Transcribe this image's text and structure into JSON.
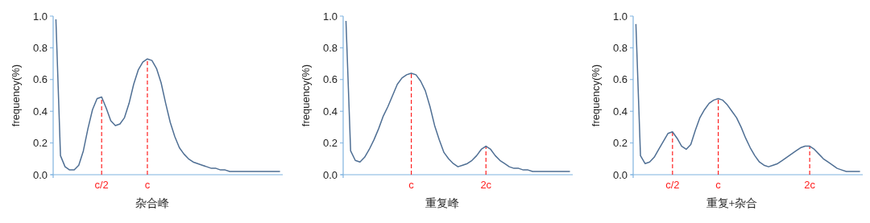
{
  "chart_data": [
    {
      "type": "line",
      "xlabel": "杂合峰",
      "ylabel": "frequency(%)",
      "ylim": [
        0,
        1
      ],
      "yticks": [
        {
          "value": 0,
          "label": "0.0"
        },
        {
          "value": 0.2,
          "label": "0.2"
        },
        {
          "value": 0.4,
          "label": "0.4"
        },
        {
          "value": 0.6,
          "label": "0.6"
        },
        {
          "value": 0.8,
          "label": "0.8"
        },
        {
          "value": 1,
          "label": "1.0"
        }
      ],
      "line_style": "solid",
      "categories": [
        null,
        null,
        null,
        null,
        null,
        null,
        null,
        null,
        null,
        null,
        "c/2",
        null,
        null,
        null,
        null,
        null,
        null,
        null,
        null,
        null,
        "c",
        null,
        null,
        null,
        null,
        null,
        null,
        null,
        null,
        null,
        null,
        null,
        null,
        null,
        null,
        null,
        null,
        null,
        null,
        null,
        null,
        null,
        null,
        null,
        null,
        null,
        null,
        null,
        null,
        null
      ],
      "series": [
        {
          "color": "#4f6f94",
          "values": [
            0.98,
            0.12,
            0.05,
            0.03,
            0.03,
            0.06,
            0.15,
            0.29,
            0.41,
            0.48,
            0.49,
            0.42,
            0.34,
            0.31,
            0.32,
            0.36,
            0.45,
            0.57,
            0.66,
            0.71,
            0.73,
            0.72,
            0.67,
            0.58,
            0.45,
            0.33,
            0.24,
            0.17,
            0.13,
            0.1,
            0.08,
            0.07,
            0.06,
            0.05,
            0.04,
            0.04,
            0.03,
            0.03,
            0.02,
            0.02,
            0.02,
            0.02,
            0.02,
            0.02,
            0.02,
            0.02,
            0.02,
            0.02,
            0.02,
            0.02
          ]
        }
      ],
      "ref_lines": [
        {
          "axis": "x",
          "value": "c/2",
          "color": "#ff2020",
          "line_style": "dashed"
        },
        {
          "axis": "x",
          "value": "c",
          "color": "#ff2020",
          "line_style": "dashed"
        }
      ]
    },
    {
      "type": "line",
      "xlabel": "重复峰",
      "ylabel": "frequency(%)",
      "ylim": [
        0,
        1
      ],
      "yticks": [
        {
          "value": 0,
          "label": "0.0"
        },
        {
          "value": 0.2,
          "label": "0.2"
        },
        {
          "value": 0.4,
          "label": "0.4"
        },
        {
          "value": 0.6,
          "label": "0.6"
        },
        {
          "value": 0.8,
          "label": "0.8"
        },
        {
          "value": 1,
          "label": "1.0"
        }
      ],
      "line_style": "solid",
      "categories": [
        null,
        null,
        null,
        null,
        null,
        null,
        null,
        null,
        null,
        null,
        null,
        null,
        null,
        null,
        "c",
        null,
        null,
        null,
        null,
        null,
        null,
        null,
        null,
        null,
        null,
        null,
        null,
        null,
        null,
        null,
        "2c",
        null,
        null,
        null,
        null,
        null,
        null,
        null,
        null,
        null,
        null,
        null,
        null,
        null,
        null,
        null,
        null,
        null,
        null
      ],
      "series": [
        {
          "color": "#4f6f94",
          "values": [
            0.97,
            0.15,
            0.09,
            0.08,
            0.11,
            0.16,
            0.22,
            0.29,
            0.37,
            0.43,
            0.5,
            0.57,
            0.61,
            0.63,
            0.64,
            0.63,
            0.59,
            0.53,
            0.43,
            0.31,
            0.22,
            0.14,
            0.1,
            0.07,
            0.05,
            0.06,
            0.07,
            0.09,
            0.12,
            0.16,
            0.18,
            0.16,
            0.12,
            0.09,
            0.07,
            0.05,
            0.04,
            0.04,
            0.03,
            0.03,
            0.02,
            0.02,
            0.02,
            0.02,
            0.02,
            0.02,
            0.02,
            0.02,
            0.02
          ]
        }
      ],
      "ref_lines": [
        {
          "axis": "x",
          "value": "c",
          "color": "#ff2020",
          "line_style": "dashed"
        },
        {
          "axis": "x",
          "value": "2c",
          "color": "#ff2020",
          "line_style": "dashed"
        }
      ]
    },
    {
      "type": "line",
      "xlabel": "重复+杂合",
      "ylabel": "frequency(%)",
      "ylim": [
        0,
        1
      ],
      "yticks": [
        {
          "value": 0,
          "label": "0.0"
        },
        {
          "value": 0.2,
          "label": "0.2"
        },
        {
          "value": 0.4,
          "label": "0.4"
        },
        {
          "value": 0.6,
          "label": "0.6"
        },
        {
          "value": 0.8,
          "label": "0.8"
        },
        {
          "value": 1,
          "label": "1.0"
        }
      ],
      "line_style": "solid",
      "categories": [
        null,
        null,
        null,
        null,
        null,
        null,
        null,
        null,
        "c/2",
        null,
        null,
        null,
        null,
        null,
        null,
        null,
        null,
        null,
        "c",
        null,
        null,
        null,
        null,
        null,
        null,
        null,
        null,
        null,
        null,
        null,
        null,
        null,
        null,
        null,
        null,
        null,
        null,
        null,
        "2c",
        null,
        null,
        null,
        null,
        null,
        null,
        null,
        null,
        null,
        null,
        null
      ],
      "series": [
        {
          "color": "#4f6f94",
          "values": [
            0.95,
            0.12,
            0.07,
            0.08,
            0.11,
            0.16,
            0.21,
            0.26,
            0.27,
            0.23,
            0.18,
            0.16,
            0.19,
            0.28,
            0.36,
            0.41,
            0.45,
            0.47,
            0.48,
            0.47,
            0.44,
            0.4,
            0.36,
            0.3,
            0.23,
            0.17,
            0.12,
            0.08,
            0.06,
            0.05,
            0.06,
            0.07,
            0.09,
            0.11,
            0.13,
            0.15,
            0.17,
            0.18,
            0.18,
            0.16,
            0.13,
            0.1,
            0.08,
            0.06,
            0.04,
            0.03,
            0.02,
            0.02,
            0.02,
            0.02
          ]
        }
      ],
      "ref_lines": [
        {
          "axis": "x",
          "value": "c/2",
          "color": "#ff2020",
          "line_style": "dashed"
        },
        {
          "axis": "x",
          "value": "c",
          "color": "#ff2020",
          "line_style": "dashed"
        },
        {
          "axis": "x",
          "value": "2c",
          "color": "#ff2020",
          "line_style": "dashed"
        }
      ]
    }
  ]
}
